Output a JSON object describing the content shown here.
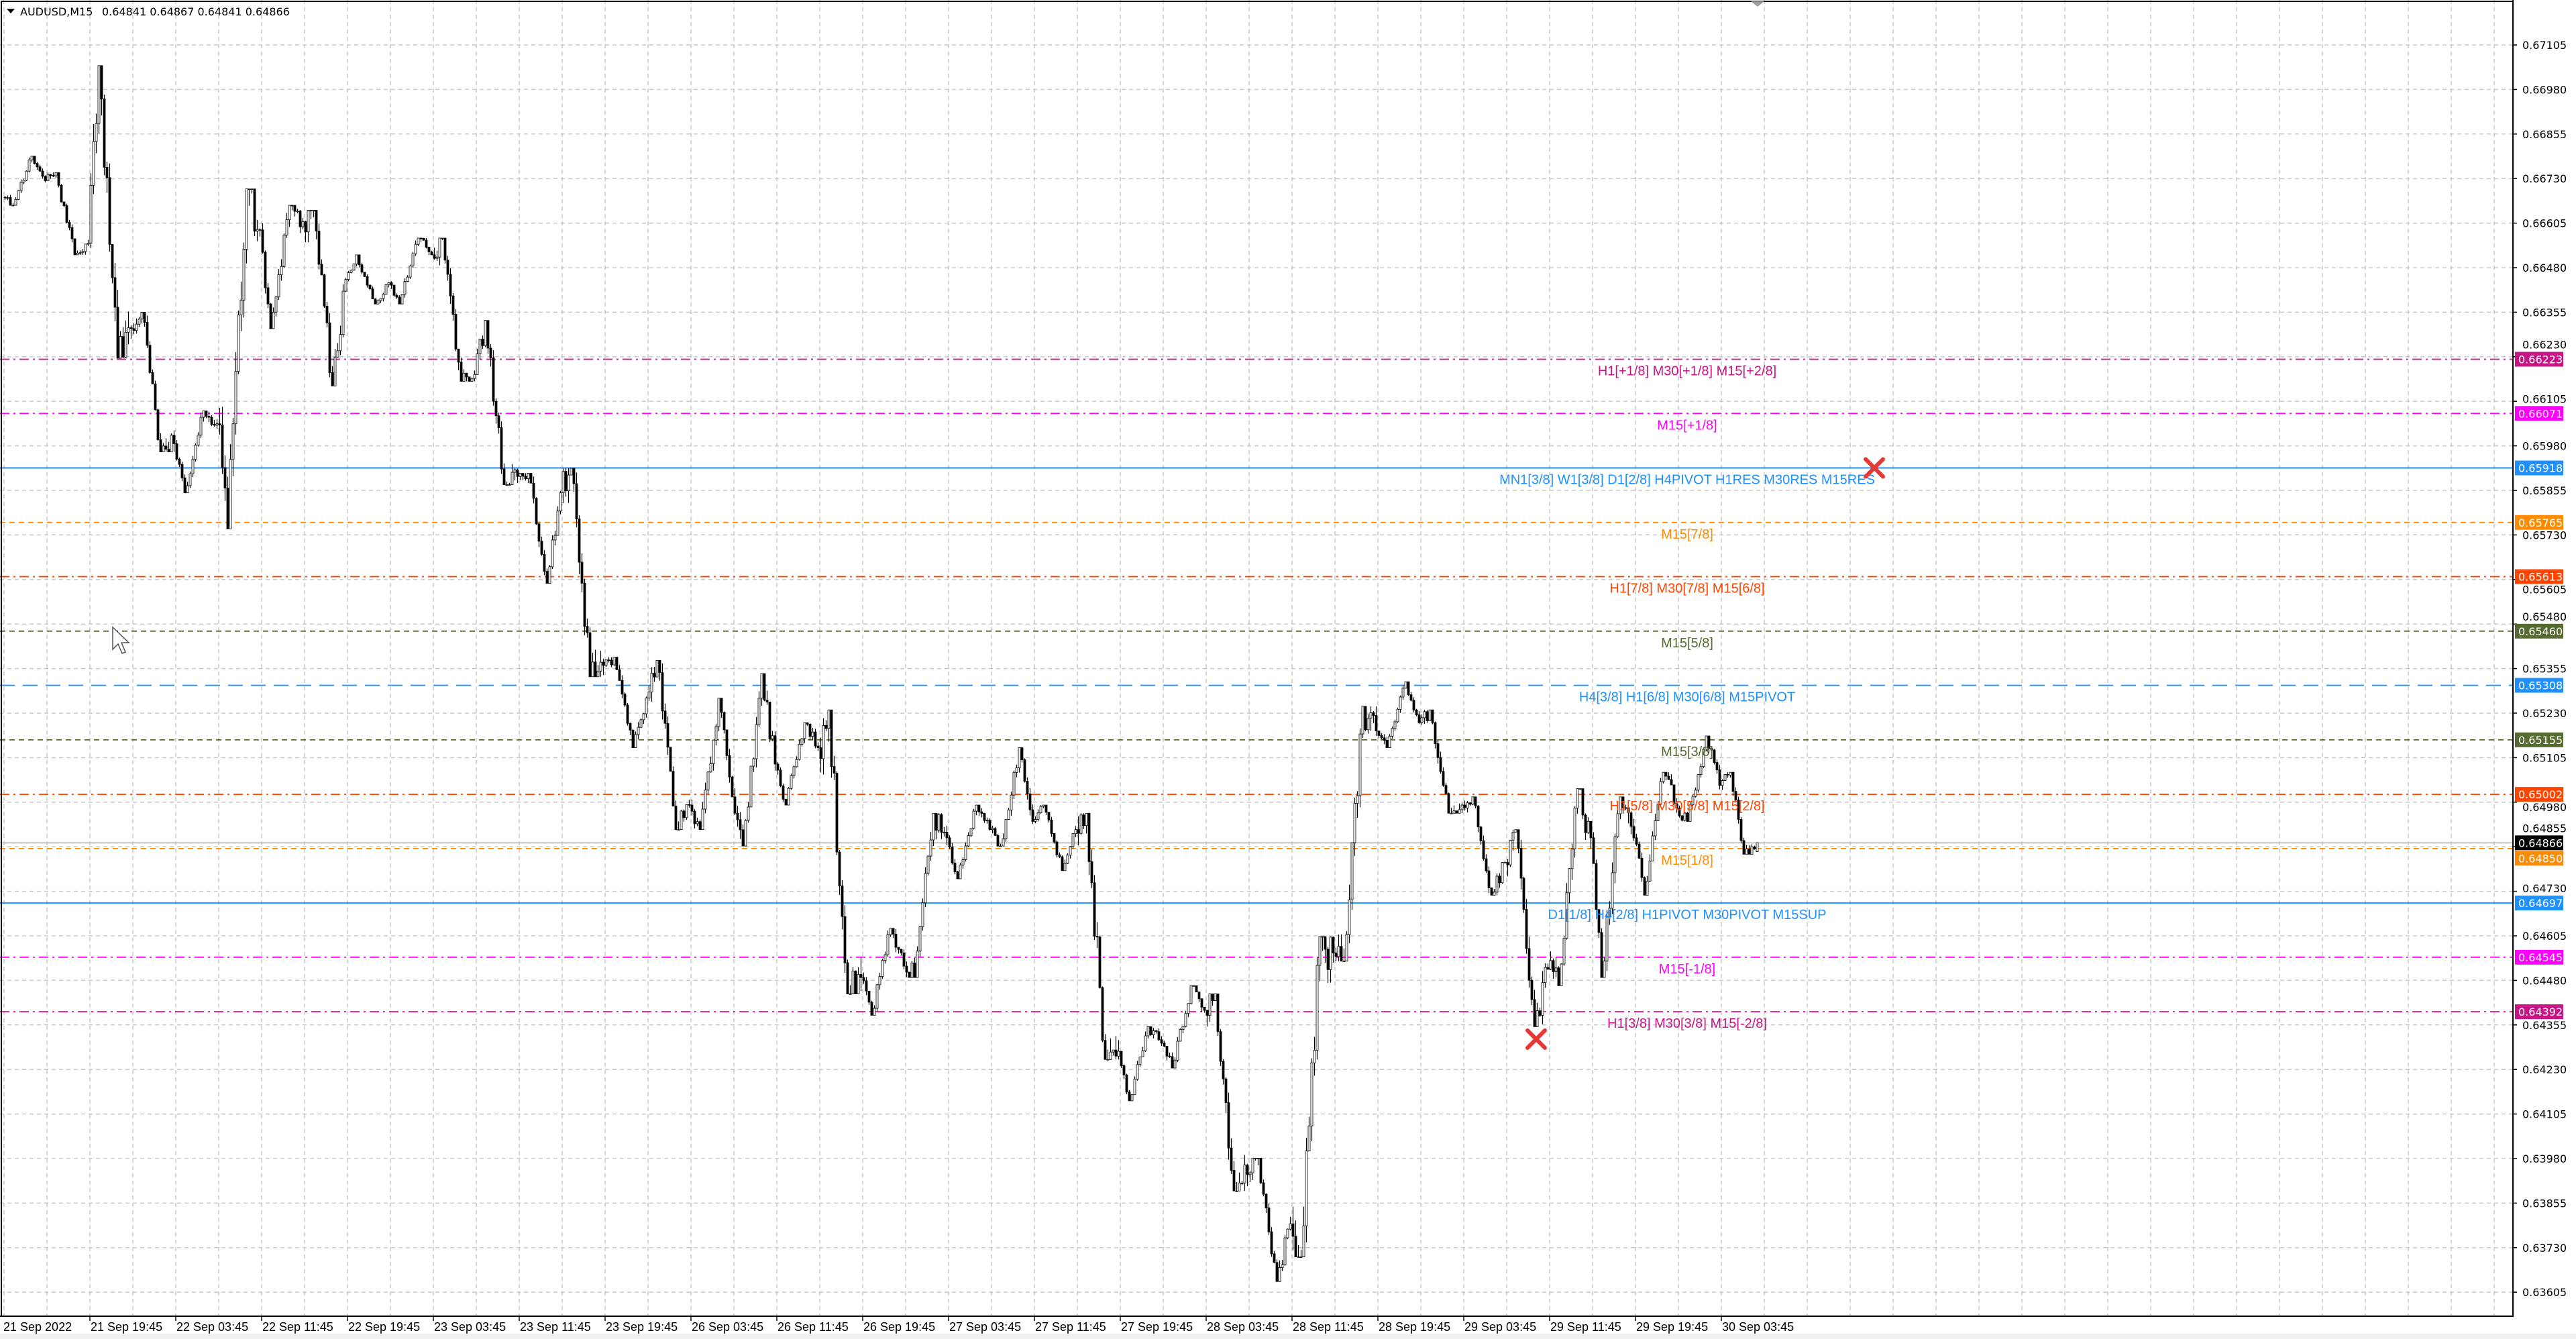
{
  "header": {
    "symbol": "AUDUSD,M15",
    "quote": "0.64841 0.64867 0.64841 0.64866",
    "open": 0.64841,
    "high": 0.64867,
    "low": 0.64841,
    "close": 0.64866
  },
  "colors": {
    "bull_fill": "#ffffff",
    "bear_fill": "#000000",
    "grid": "#c8c8c8",
    "current_price_tag": "#000000",
    "marker": "#e53935"
  },
  "chart_data": {
    "type": "candlestick",
    "timeframe": "M15",
    "ylim": [
      0.63537,
      0.67231
    ],
    "grid": true,
    "y_ticks": [
      "0.67105",
      "0.66980",
      "0.66855",
      "0.66730",
      "0.66605",
      "0.66480",
      "0.66355",
      "0.66230",
      "0.66105",
      "0.65980",
      "0.65855",
      "0.65730",
      "0.65605",
      "0.65480",
      "0.65355",
      "0.65230",
      "0.65105",
      "0.64980",
      "0.64855",
      "0.64730",
      "0.64605",
      "0.64480",
      "0.64355",
      "0.64230",
      "0.64105",
      "0.63980",
      "0.63855",
      "0.63730",
      "0.63605"
    ],
    "x_ticks": [
      "21 Sep 2022",
      "21 Sep 19:45",
      "22 Sep 03:45",
      "22 Sep 11:45",
      "22 Sep 19:45",
      "23 Sep 03:45",
      "23 Sep 11:45",
      "23 Sep 19:45",
      "26 Sep 03:45",
      "26 Sep 11:45",
      "26 Sep 19:45",
      "27 Sep 03:45",
      "27 Sep 11:45",
      "27 Sep 19:45",
      "28 Sep 03:45",
      "28 Sep 11:45",
      "28 Sep 19:45",
      "29 Sep 03:45",
      "29 Sep 11:45",
      "29 Sep 19:45",
      "30 Sep 03:45"
    ],
    "first_open": 0.66678,
    "price_h4_summary": [
      {
        "t": "21 Sep 11:45",
        "h": 0.66793,
        "l": 0.66655,
        "c": 0.66724
      },
      {
        "t": "21 Sep 15:45",
        "h": 0.66747,
        "l": 0.66516,
        "c": 0.66549
      },
      {
        "t": "21 Sep 19:45",
        "h": 0.67047,
        "l": 0.66226,
        "c": 0.66309
      },
      {
        "t": "21 Sep 23:45",
        "h": 0.66355,
        "l": 0.65963,
        "c": 0.65986
      },
      {
        "t": "22 Sep 03:45",
        "h": 0.66078,
        "l": 0.65848,
        "c": 0.66042
      },
      {
        "t": "22 Sep 07:45",
        "h": 0.66701,
        "l": 0.65747,
        "c": 0.66586
      },
      {
        "t": "22 Sep 11:45",
        "h": 0.66655,
        "l": 0.66309,
        "c": 0.66609
      },
      {
        "t": "22 Sep 15:45",
        "h": 0.66641,
        "l": 0.66148,
        "c": 0.66447
      },
      {
        "t": "22 Sep 19:45",
        "h": 0.66516,
        "l": 0.66378,
        "c": 0.66438
      },
      {
        "t": "22 Sep 23:45",
        "h": 0.66563,
        "l": 0.66378,
        "c": 0.66516
      },
      {
        "t": "23 Sep 03:45",
        "h": 0.66563,
        "l": 0.66161,
        "c": 0.6618
      },
      {
        "t": "23 Sep 07:45",
        "h": 0.66332,
        "l": 0.65871,
        "c": 0.65894
      },
      {
        "t": "23 Sep 11:45",
        "h": 0.65903,
        "l": 0.65594,
        "c": 0.65848
      },
      {
        "t": "23 Sep 15:45",
        "h": 0.65917,
        "l": 0.65332,
        "c": 0.65364
      },
      {
        "t": "23 Sep 19:45",
        "h": 0.65387,
        "l": 0.65133,
        "c": 0.65272
      },
      {
        "t": "23 Sep 23:45",
        "h": 0.65378,
        "l": 0.64903,
        "c": 0.64972
      },
      {
        "t": "26 Sep 03:45",
        "h": 0.65272,
        "l": 0.64903,
        "c": 0.64995
      },
      {
        "t": "26 Sep 07:45",
        "h": 0.65341,
        "l": 0.64857,
        "c": 0.65087
      },
      {
        "t": "26 Sep 11:45",
        "h": 0.65203,
        "l": 0.64972,
        "c": 0.65133
      },
      {
        "t": "26 Sep 15:45",
        "h": 0.65239,
        "l": 0.64442,
        "c": 0.64488
      },
      {
        "t": "26 Sep 19:45",
        "h": 0.64626,
        "l": 0.64382,
        "c": 0.6452
      },
      {
        "t": "26 Sep 23:45",
        "h": 0.64949,
        "l": 0.64488,
        "c": 0.6488
      },
      {
        "t": "27 Sep 03:45",
        "h": 0.64972,
        "l": 0.64765,
        "c": 0.64903
      },
      {
        "t": "27 Sep 07:45",
        "h": 0.65133,
        "l": 0.64857,
        "c": 0.64926
      },
      {
        "t": "27 Sep 11:45",
        "h": 0.64972,
        "l": 0.64788,
        "c": 0.64903
      },
      {
        "t": "27 Sep 15:45",
        "h": 0.64949,
        "l": 0.64258,
        "c": 0.64281
      },
      {
        "t": "27 Sep 19:45",
        "h": 0.6435,
        "l": 0.64142,
        "c": 0.64304
      },
      {
        "t": "27 Sep 23:45",
        "h": 0.64465,
        "l": 0.64234,
        "c": 0.64396
      },
      {
        "t": "28 Sep 03:45",
        "h": 0.64442,
        "l": 0.63889,
        "c": 0.63935
      },
      {
        "t": "28 Sep 07:45",
        "h": 0.63981,
        "l": 0.63635,
        "c": 0.63797
      },
      {
        "t": "28 Sep 11:45",
        "h": 0.64603,
        "l": 0.63704,
        "c": 0.64557
      },
      {
        "t": "28 Sep 15:45",
        "h": 0.65249,
        "l": 0.64534,
        "c": 0.6518
      },
      {
        "t": "28 Sep 19:45",
        "h": 0.65318,
        "l": 0.65133,
        "c": 0.65203
      },
      {
        "t": "28 Sep 23:45",
        "h": 0.65239,
        "l": 0.64949,
        "c": 0.64972
      },
      {
        "t": "29 Sep 03:45",
        "h": 0.64995,
        "l": 0.64719,
        "c": 0.64811
      },
      {
        "t": "29 Sep 07:45",
        "h": 0.64903,
        "l": 0.6435,
        "c": 0.64511
      },
      {
        "t": "29 Sep 11:45",
        "h": 0.65018,
        "l": 0.64465,
        "c": 0.6488
      },
      {
        "t": "29 Sep 15:45",
        "h": 0.64995,
        "l": 0.64488,
        "c": 0.6488
      },
      {
        "t": "29 Sep 19:45",
        "h": 0.65064,
        "l": 0.64719,
        "c": 0.64963
      },
      {
        "t": "29 Sep 23:45",
        "h": 0.65166,
        "l": 0.64926,
        "c": 0.65027
      },
      {
        "t": "30 Sep 03:45",
        "h": 0.65064,
        "l": 0.64834,
        "c": 0.64866
      }
    ],
    "current_price": {
      "price": 0.64866,
      "label": "0.64866"
    },
    "levels": [
      {
        "price": 0.66223,
        "tag": "0.66223",
        "label": "H1[+1/8] M30[+1/8] M15[+2/8]",
        "color": "#c71585",
        "style": "dashdot"
      },
      {
        "price": 0.66071,
        "tag": "0.66071",
        "label": "M15[+1/8]",
        "color": "#ff00ff",
        "style": "dashdot"
      },
      {
        "price": 0.65918,
        "tag": "0.65918",
        "label": "MN1[3/8] W1[3/8] D1[2/8] H4PIVOT H1RES M30RES M15RES",
        "color": "#1e90ff",
        "style": "solid"
      },
      {
        "price": 0.65765,
        "tag": "0.65765",
        "label": "M15[7/8]",
        "color": "#ff8c00",
        "style": "dashed"
      },
      {
        "price": 0.65613,
        "tag": "0.65613",
        "label": "H1[7/8] M30[7/8] M15[6/8]",
        "color": "#ff4500",
        "style": "dashdot"
      },
      {
        "price": 0.6546,
        "tag": "0.65460",
        "label": "M15[5/8]",
        "color": "#556b2f",
        "style": "dashed"
      },
      {
        "price": 0.65308,
        "tag": "0.65308",
        "label": "H4[3/8] H1[6/8] M30[6/8] M15PIVOT",
        "color": "#1e90ff",
        "style": "longdash"
      },
      {
        "price": 0.65155,
        "tag": "0.65155",
        "label": "M15[3/8]",
        "color": "#556b2f",
        "style": "dashed"
      },
      {
        "price": 0.65002,
        "tag": "0.65002",
        "label": "H1[5/8] M30[5/8] M15[2/8]",
        "color": "#ff4500",
        "style": "dashdot"
      },
      {
        "price": 0.6485,
        "tag": "0.64850",
        "label": "M15[1/8]",
        "color": "#ff8c00",
        "style": "dashed"
      },
      {
        "price": 0.64697,
        "tag": "0.64697",
        "label": "D1[1/8] H4[2/8] H1PIVOT M30PIVOT M15SUP",
        "color": "#1e90ff",
        "style": "solid"
      },
      {
        "price": 0.64545,
        "tag": "0.64545",
        "label": "M15[-1/8]",
        "color": "#ff00ff",
        "style": "dashdot"
      },
      {
        "price": 0.64392,
        "tag": "0.64392",
        "label": "H1[3/8] M30[3/8] M15[-2/8]",
        "color": "#c71585",
        "style": "dashdot"
      }
    ],
    "markers": [
      {
        "icon": "cross-icon",
        "time": "30 Sep 07:45",
        "price": 0.65918
      },
      {
        "icon": "cross-icon",
        "time": "29 Sep 07:45",
        "price": 0.64315
      }
    ]
  }
}
